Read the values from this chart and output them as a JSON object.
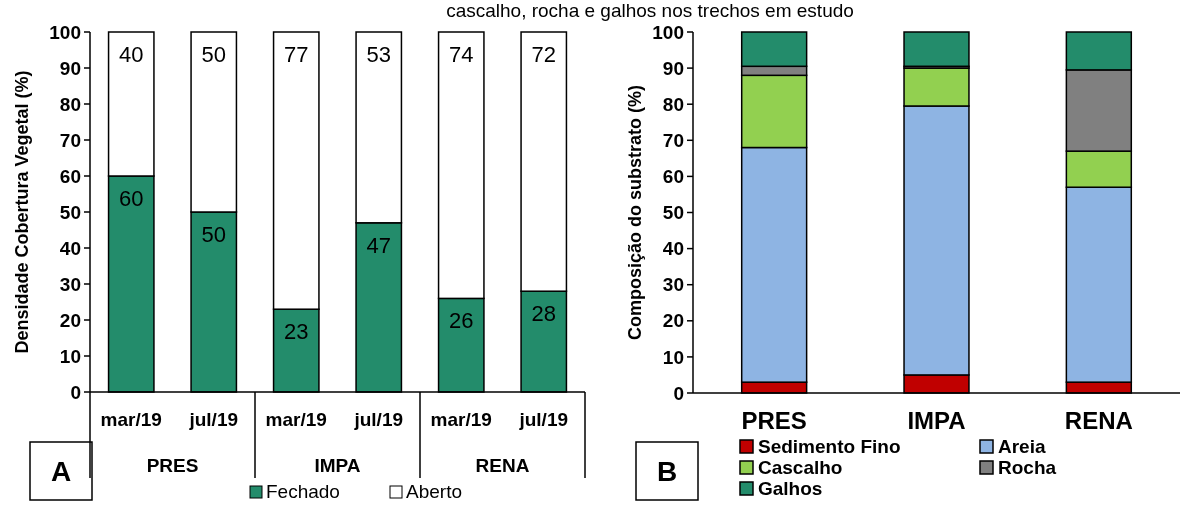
{
  "chart_data": [
    {
      "type": "bar",
      "title": "cascalho, rocha e galhos nos trechos em estudo",
      "ylabel": "Densidade Cobertura Vegetal (%)",
      "categories": [
        "mar/19",
        "jul/19",
        "mar/19",
        "jul/19",
        "mar/19",
        "jul/19"
      ],
      "stacked": true,
      "series": [
        {
          "name": "Fechado",
          "color": "#238c6b",
          "values": [
            60,
            50,
            23,
            47,
            26,
            28
          ]
        },
        {
          "name": "Aberto",
          "color": "#ffffff",
          "values": [
            40,
            50,
            77,
            53,
            74,
            72
          ]
        }
      ],
      "ylim": [
        0,
        100
      ],
      "yticks": [
        0,
        10,
        20,
        30,
        40,
        50,
        60,
        70,
        80,
        90,
        100
      ],
      "data_labels": true,
      "legend": "bottom",
      "grid": false,
      "annotations": [
        "A",
        "PRES",
        "IMPA",
        "RENA"
      ]
    },
    {
      "type": "bar",
      "ylabel": "Composição do substrato (%)",
      "categories": [
        "PRES",
        "IMPA",
        "RENA"
      ],
      "stacked": true,
      "series": [
        {
          "name": "Sedimento Fino",
          "color": "#c00000",
          "values": [
            3,
            5,
            3
          ]
        },
        {
          "name": "Areia",
          "color": "#8eb4e3",
          "values": [
            65,
            74.5,
            54
          ]
        },
        {
          "name": "Cascalho",
          "color": "#92d050",
          "values": [
            20,
            10.5,
            10
          ]
        },
        {
          "name": "Rocha",
          "color": "#808080",
          "values": [
            2.5,
            0.5,
            22.5
          ]
        },
        {
          "name": "Galhos",
          "color": "#238c6b",
          "values": [
            9.5,
            9.5,
            10.5
          ]
        }
      ],
      "ylim": [
        0,
        100
      ],
      "yticks": [
        0,
        10,
        20,
        30,
        40,
        50,
        60,
        70,
        80,
        90,
        100
      ],
      "legend": "bottom",
      "grid": false,
      "annotations": [
        "B"
      ]
    }
  ]
}
